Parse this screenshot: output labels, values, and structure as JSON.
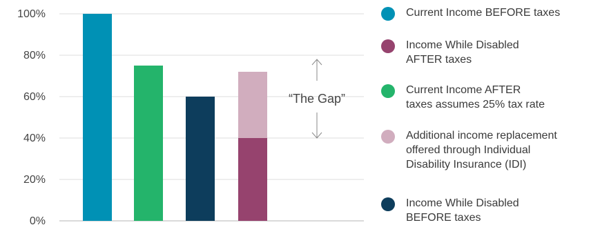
{
  "chart_data": {
    "type": "bar",
    "stacked": true,
    "categories": [
      "",
      "",
      "",
      "",
      ""
    ],
    "series": [
      {
        "name": "Current Income BEFORE taxes",
        "color": "#0091b5",
        "values": [
          100,
          0,
          0,
          0,
          0
        ]
      },
      {
        "name": "Current Income AFTER taxes assumes 25% tax rate",
        "color": "#24b46b",
        "values": [
          0,
          75,
          0,
          0,
          0
        ]
      },
      {
        "name": "Income While Disabled BEFORE taxes",
        "color": "#0d3d5c",
        "values": [
          0,
          0,
          60,
          0,
          0
        ]
      },
      {
        "name": "Income While Disabled AFTER taxes",
        "color": "#96436e",
        "values": [
          0,
          0,
          0,
          40,
          0
        ]
      },
      {
        "name": "Additional income replacement offered through Individual Disability Insurance (IDI)",
        "color": "#d1adbe",
        "values": [
          0,
          0,
          0,
          32,
          0
        ]
      }
    ],
    "y_ticks": [
      "0%",
      "20%",
      "40%",
      "60%",
      "80%",
      "100%"
    ],
    "ylim": [
      0,
      100
    ],
    "grid": true,
    "annotation": {
      "text": "“The Gap”",
      "from": 40,
      "to": 78
    },
    "legend_position": "right"
  },
  "legend": {
    "items": [
      {
        "label_lines": [
          "Current Income BEFORE taxes"
        ],
        "color": "#0091b5"
      },
      {
        "label_lines": [
          "Income While Disabled",
          "AFTER taxes"
        ],
        "color": "#96436e"
      },
      {
        "label_lines": [
          "Current Income AFTER",
          "taxes assumes 25% tax rate"
        ],
        "color": "#24b46b"
      },
      {
        "label_lines": [
          "Additional income replacement",
          "offered through Individual",
          "Disability Insurance (IDI)"
        ],
        "color": "#d1adbe"
      },
      {
        "label_lines": [
          "Income While Disabled",
          "BEFORE taxes"
        ],
        "color": "#0d3d5c"
      }
    ]
  }
}
